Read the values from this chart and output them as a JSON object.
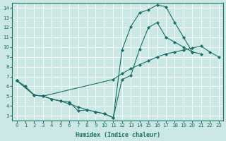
{
  "xlabel": "Humidex (Indice chaleur)",
  "xlim": [
    -0.5,
    23.5
  ],
  "ylim": [
    2.5,
    14.5
  ],
  "xticks": [
    0,
    1,
    2,
    3,
    4,
    5,
    6,
    7,
    8,
    9,
    10,
    11,
    12,
    13,
    14,
    15,
    16,
    17,
    18,
    19,
    20,
    21,
    22,
    23
  ],
  "yticks": [
    3,
    4,
    5,
    6,
    7,
    8,
    9,
    10,
    11,
    12,
    13,
    14
  ],
  "bg_color": "#cce8e4",
  "line_color": "#1a6e65",
  "line1_x": [
    0,
    1,
    2,
    3,
    4,
    5,
    6,
    7,
    8,
    9,
    10,
    11,
    12,
    13,
    14,
    15,
    16,
    17,
    18,
    19,
    20,
    21
  ],
  "line1_y": [
    6.6,
    6.0,
    5.1,
    5.0,
    4.7,
    4.5,
    4.2,
    3.9,
    3.6,
    3.4,
    3.2,
    2.8,
    9.7,
    12.1,
    13.5,
    13.8,
    14.3,
    14.1,
    12.5,
    11.0,
    9.5,
    null
  ],
  "line2_x": [
    0,
    2,
    3,
    4,
    5,
    6,
    7,
    8,
    9,
    10,
    11,
    12,
    13,
    14,
    15,
    16,
    17,
    18,
    19,
    20,
    21,
    22,
    23
  ],
  "line2_y": [
    6.6,
    5.1,
    5.0,
    4.7,
    4.5,
    4.4,
    3.5,
    3.6,
    3.4,
    3.2,
    2.8,
    6.7,
    7.1,
    9.8,
    12.0,
    12.5,
    11.0,
    10.5,
    10.0,
    9.5,
    9.3,
    null,
    null
  ],
  "line3_x": [
    0,
    2,
    3,
    11,
    12,
    13,
    14,
    15,
    16,
    17,
    18,
    19,
    20,
    21,
    22,
    23
  ],
  "line3_y": [
    6.6,
    5.1,
    5.0,
    6.7,
    7.3,
    7.8,
    8.2,
    8.6,
    9.0,
    9.3,
    9.5,
    9.7,
    9.9,
    10.1,
    9.5,
    9.0
  ]
}
